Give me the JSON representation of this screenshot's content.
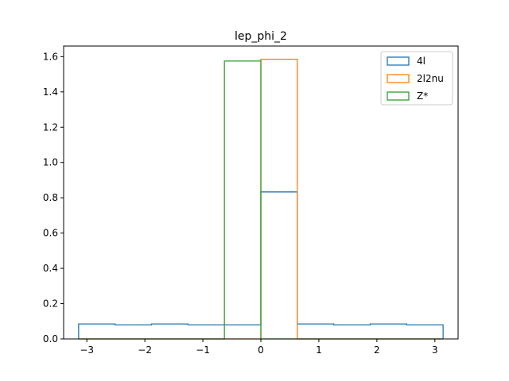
{
  "chart_data": {
    "type": "histogram-step",
    "title": "lep_phi_2",
    "xlabel": "",
    "ylabel": "",
    "xlim": [
      -3.4,
      3.4
    ],
    "ylim": [
      0,
      1.66
    ],
    "xticks": [
      -3,
      -2,
      -1,
      0,
      1,
      2,
      3
    ],
    "xtick_labels": [
      "−3",
      "−2",
      "−1",
      "0",
      "1",
      "2",
      "3"
    ],
    "yticks": [
      0.0,
      0.2,
      0.4,
      0.6,
      0.8,
      1.0,
      1.2,
      1.4,
      1.6
    ],
    "ytick_labels": [
      "0.0",
      "0.2",
      "0.4",
      "0.6",
      "0.8",
      "1.0",
      "1.2",
      "1.4",
      "1.6"
    ],
    "bin_edges": [
      -3.1416,
      -2.5133,
      -1.885,
      -1.2566,
      -0.6283,
      0.0,
      0.6283,
      1.2566,
      1.885,
      2.5133,
      3.1416
    ],
    "series": [
      {
        "name": "4l",
        "color": "#1f77b4",
        "values": [
          0.085,
          0.08,
          0.085,
          0.08,
          0.08,
          0.833,
          0.085,
          0.08,
          0.085,
          0.08
        ]
      },
      {
        "name": "2l2nu",
        "color": "#ff7f0e",
        "values": [
          0,
          0,
          0,
          0,
          0,
          1.585,
          0,
          0,
          0,
          0
        ]
      },
      {
        "name": "Z*",
        "color": "#2ca02c",
        "values": [
          0,
          0,
          0,
          0,
          1.575,
          0,
          0,
          0,
          0,
          0
        ]
      }
    ],
    "legend_position": "top-right",
    "grid": false
  }
}
